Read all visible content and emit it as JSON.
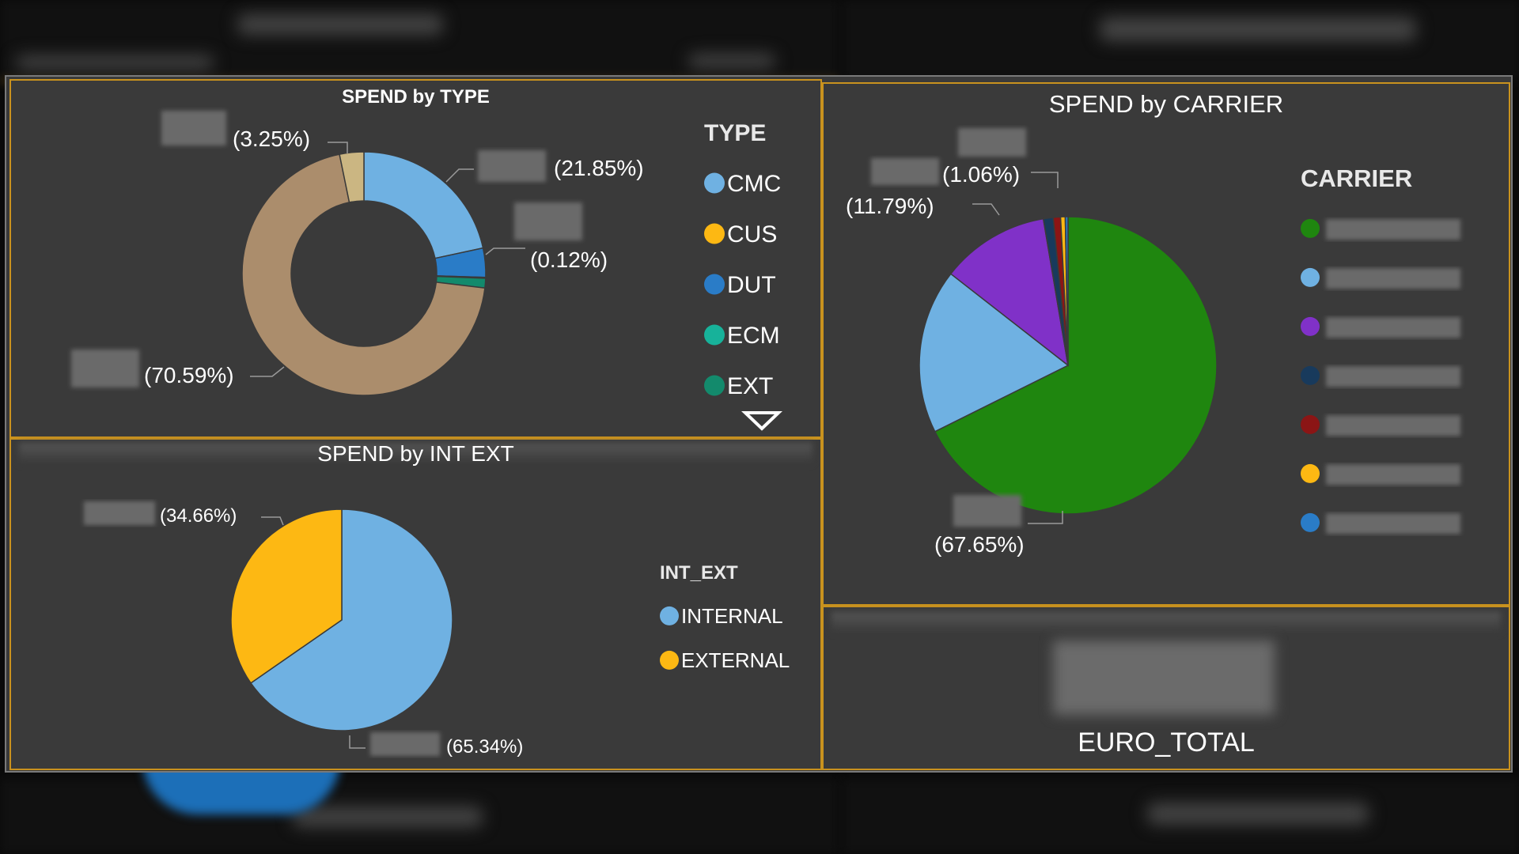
{
  "panels": {
    "type": {
      "title": "SPEND by TYPE",
      "legend_title": "TYPE"
    },
    "int_ext": {
      "title": "SPEND by INT EXT",
      "legend_title": "INT_EXT"
    },
    "carrier": {
      "title": "SPEND by CARRIER",
      "legend_title": "CARRIER"
    },
    "kpi": {
      "label": "EURO_TOTAL"
    }
  },
  "colors": {
    "panel_border": "#c9921e",
    "panel_bg": "#3a3a3a"
  },
  "chart_data": [
    {
      "type": "pie",
      "variant": "donut",
      "title": "SPEND by TYPE",
      "legend": {
        "title": "TYPE",
        "placement": "right",
        "entries": [
          {
            "name": "CMC",
            "color": "#6fb1e2"
          },
          {
            "name": "CUS",
            "color": "#fdb813"
          },
          {
            "name": "DUT",
            "color": "#2a7cc7"
          },
          {
            "name": "ECM",
            "color": "#17b29a"
          },
          {
            "name": "EXT",
            "color": "#138a6c"
          }
        ]
      },
      "slices": [
        {
          "percent": 21.85,
          "label": "(21.85%)",
          "color": "#6fb1e2"
        },
        {
          "percent": 3.9,
          "label": "",
          "color": "#2a7cc7"
        },
        {
          "percent": 0.12,
          "label": "(0.12%)",
          "color": "#17b29a"
        },
        {
          "percent": 1.29,
          "label": "",
          "color": "#138a6c"
        },
        {
          "percent": 70.59,
          "label": "(70.59%)",
          "color": "#ab8d6c"
        },
        {
          "percent": 3.25,
          "label": "(3.25%)",
          "color": "#cbb682"
        }
      ]
    },
    {
      "type": "pie",
      "title": "SPEND by INT EXT",
      "legend": {
        "title": "INT_EXT",
        "placement": "right",
        "entries": [
          {
            "name": "INTERNAL",
            "color": "#6fb1e2"
          },
          {
            "name": "EXTERNAL",
            "color": "#fdb813"
          }
        ]
      },
      "slices": [
        {
          "percent": 65.34,
          "label": "(65.34%)",
          "color": "#6fb1e2"
        },
        {
          "percent": 34.66,
          "label": "(34.66%)",
          "color": "#fdb813"
        }
      ]
    },
    {
      "type": "pie",
      "title": "SPEND by CARRIER",
      "legend": {
        "title": "CARRIER",
        "placement": "right",
        "entries": [
          {
            "name": "",
            "color": "#1f860f"
          },
          {
            "name": "",
            "color": "#6fb1e2"
          },
          {
            "name": "",
            "color": "#8031c8"
          },
          {
            "name": "",
            "color": "#183a5c"
          },
          {
            "name": "",
            "color": "#8b1515"
          },
          {
            "name": "",
            "color": "#fdb813"
          },
          {
            "name": "",
            "color": "#2a7cc7"
          }
        ]
      },
      "slices": [
        {
          "percent": 67.65,
          "label": "(67.65%)",
          "color": "#1f860f"
        },
        {
          "percent": 17.9,
          "label": "",
          "color": "#6fb1e2"
        },
        {
          "percent": 11.79,
          "label": "(11.79%)",
          "color": "#8031c8"
        },
        {
          "percent": 1.06,
          "label": "(1.06%)",
          "color": "#183a5c"
        },
        {
          "percent": 0.8,
          "label": "",
          "color": "#8b1515"
        },
        {
          "percent": 0.5,
          "label": "",
          "color": "#fdb813"
        },
        {
          "percent": 0.3,
          "label": "",
          "color": "#2a7cc7"
        }
      ]
    }
  ]
}
